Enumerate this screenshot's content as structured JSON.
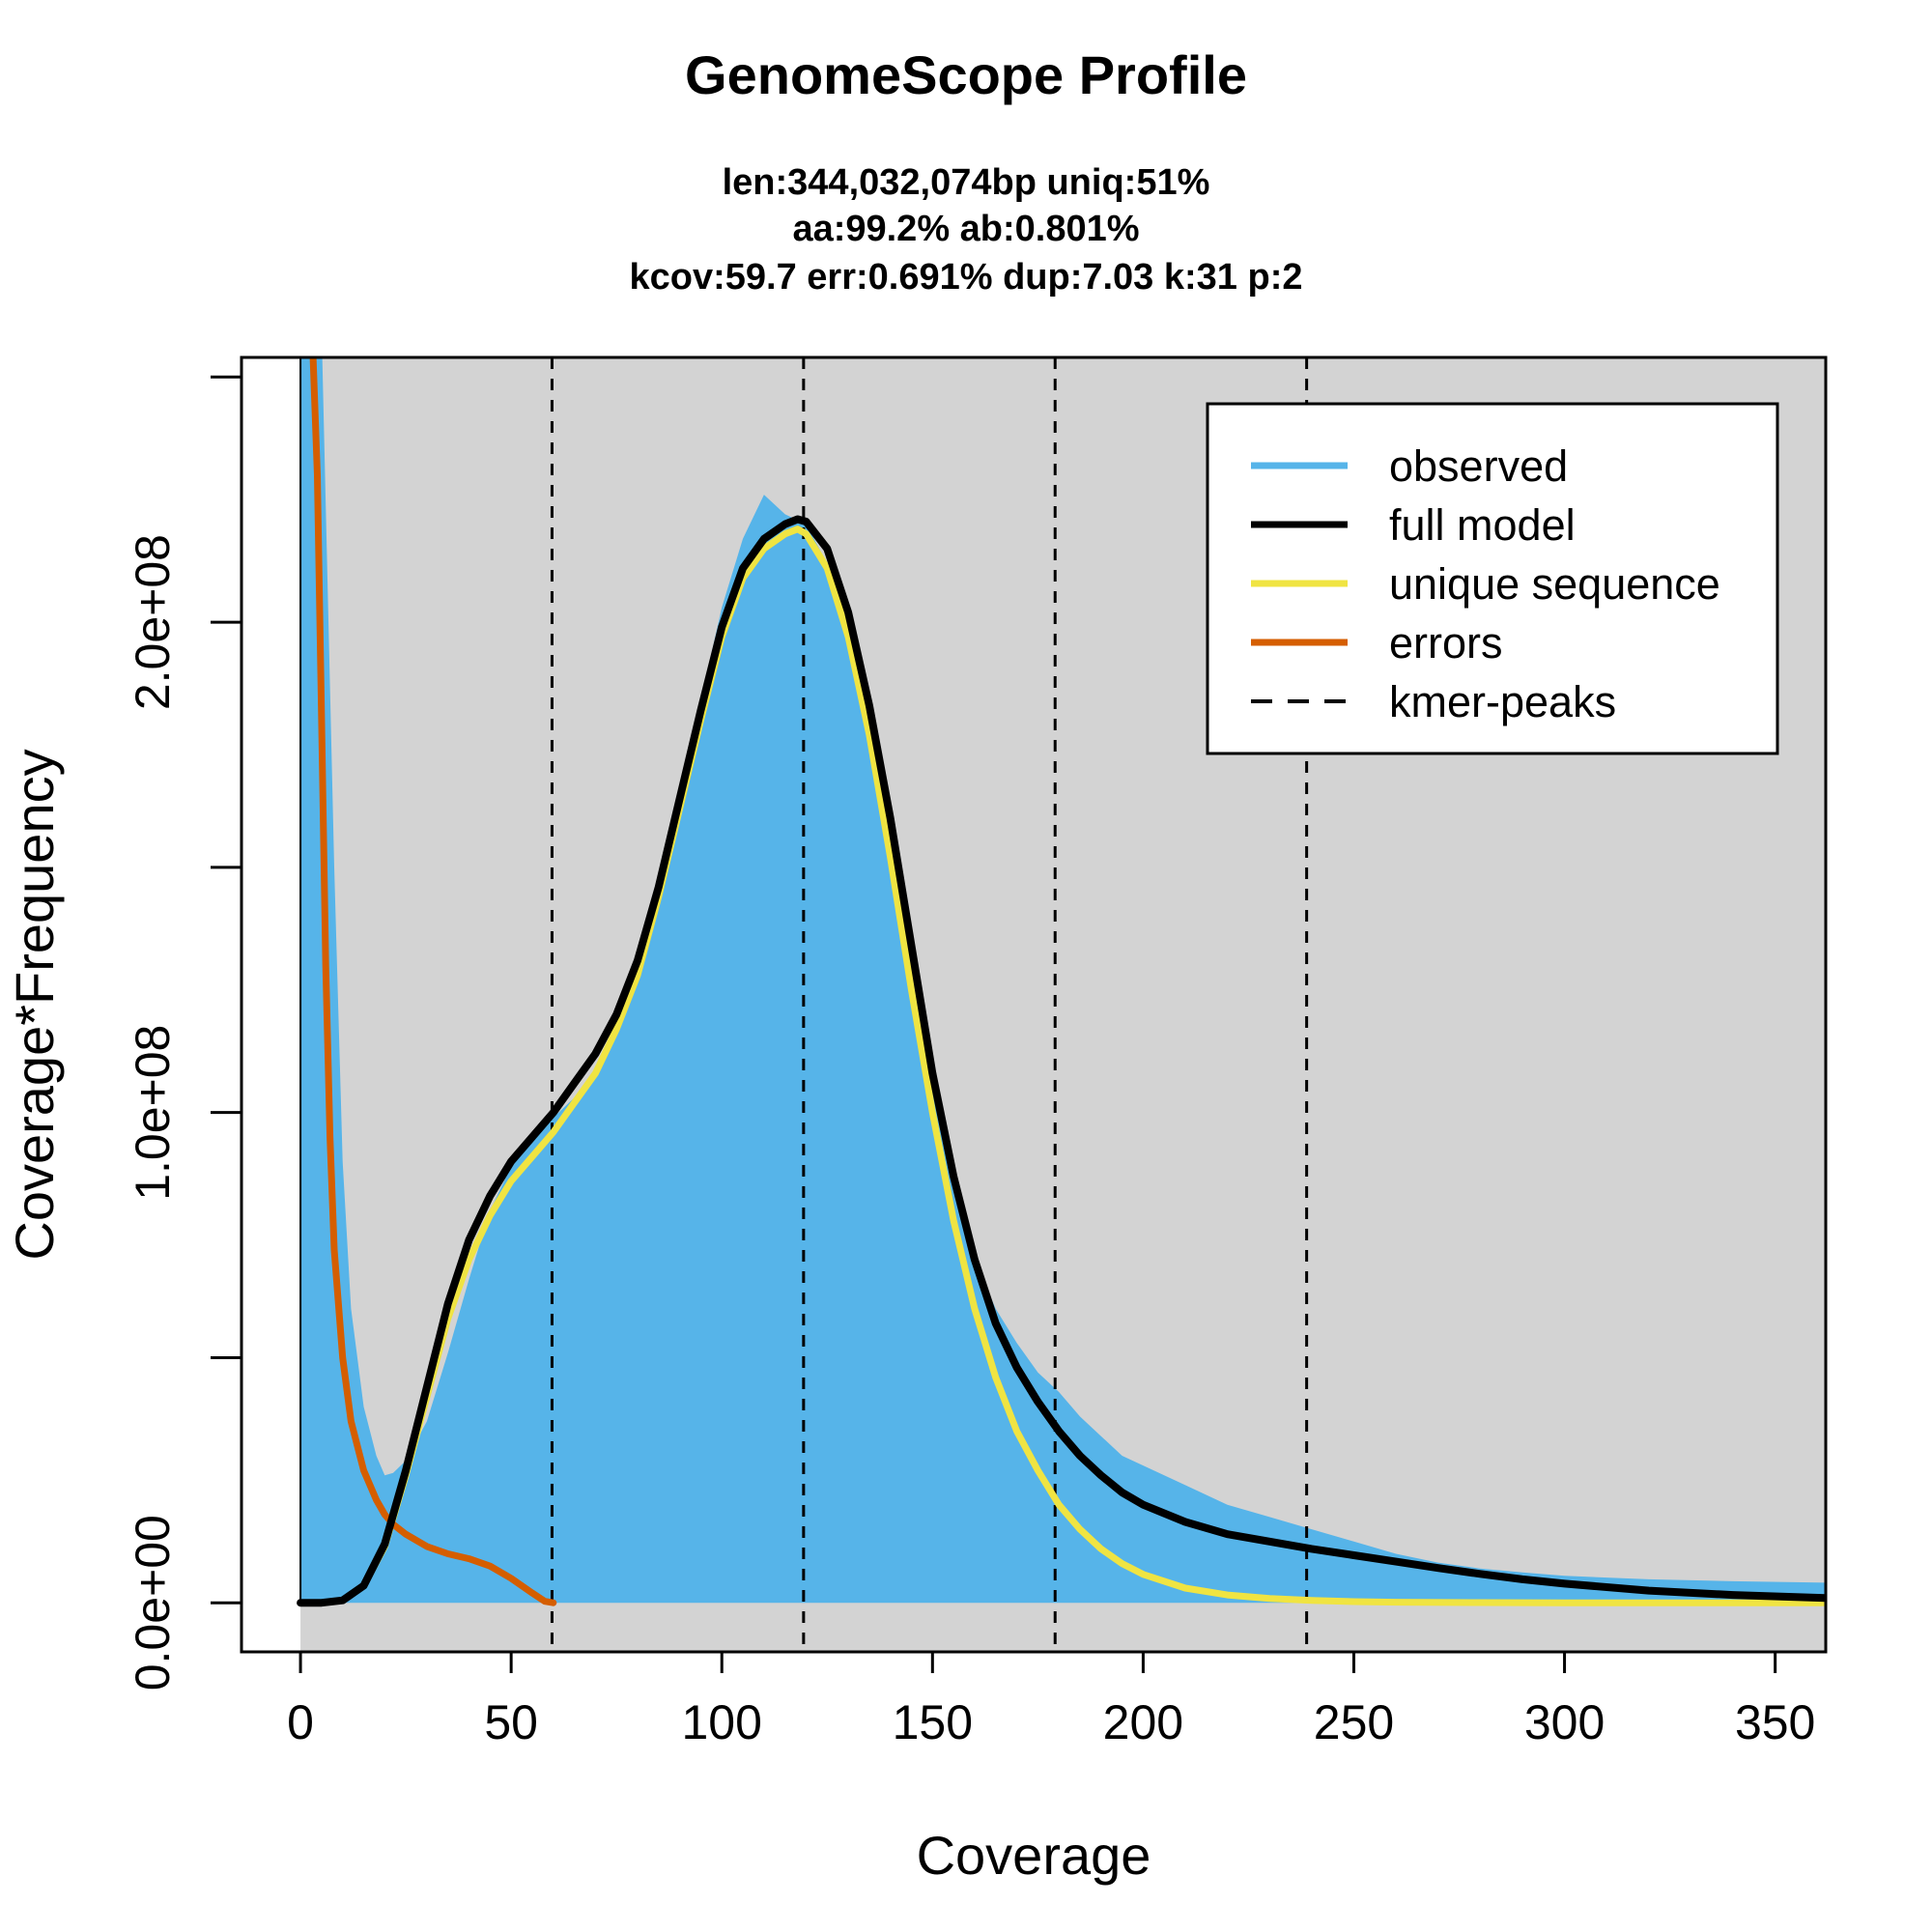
{
  "chart_data": {
    "type": "area",
    "title": "GenomeScope Profile",
    "subtitle_lines": [
      "len:344,032,074bp uniq:51%",
      "aa:99.2% ab:0.801%",
      "kcov:59.7 err:0.691%  dup:7.03  k:31 p:2"
    ],
    "xlabel": "Coverage",
    "ylabel": "Coverage*Frequency",
    "xlim": [
      -14,
      362
    ],
    "ylim": [
      -10000000,
      254000000
    ],
    "x_ticks": [
      0,
      50,
      100,
      150,
      200,
      250,
      300,
      350
    ],
    "x_tick_labels": [
      "0",
      "50",
      "100",
      "150",
      "200",
      "250",
      "300",
      "350"
    ],
    "y_ticks": [
      0,
      50000000,
      100000000,
      150000000,
      200000000,
      250000000
    ],
    "y_tick_labels": [
      "0.0e+00",
      "",
      "1.0e+08",
      "",
      "2.0e+08",
      ""
    ],
    "kmer_peaks": [
      59.7,
      119.4,
      179.1,
      238.8
    ],
    "legend_position": "top-right",
    "colors": {
      "observed": "#56B4E9",
      "full_model": "#000000",
      "unique_sequence": "#F0E442",
      "errors": "#D55E00",
      "plot_bg": "#D3D3D3"
    },
    "series": [
      {
        "name": "observed",
        "x": [
          0,
          1,
          2,
          3,
          5,
          8,
          10,
          12,
          15,
          18,
          20,
          22,
          25,
          30,
          35,
          40,
          45,
          50,
          55,
          60,
          65,
          70,
          75,
          80,
          85,
          90,
          95,
          100,
          105,
          110,
          115,
          120,
          125,
          130,
          135,
          140,
          145,
          150,
          155,
          160,
          165,
          170,
          175,
          180,
          185,
          190,
          195,
          200,
          210,
          220,
          230,
          240,
          250,
          260,
          270,
          280,
          290,
          300,
          320,
          340,
          362
        ],
        "values": [
          260000000,
          260000000,
          260000000,
          260000000,
          260000000,
          150000000,
          90000000,
          60000000,
          40000000,
          30000000,
          26000000,
          26500000,
          29000000,
          37000000,
          51000000,
          66000000,
          80000000,
          89000000,
          95000000,
          99000000,
          103000000,
          107000000,
          116000000,
          128000000,
          144000000,
          163000000,
          184000000,
          203000000,
          217000000,
          226000000,
          222000000,
          220000000,
          212000000,
          195000000,
          175000000,
          150000000,
          127000000,
          106000000,
          86000000,
          70000000,
          60000000,
          53000000,
          47000000,
          43000000,
          38000000,
          34000000,
          30000000,
          28000000,
          24000000,
          20000000,
          17500000,
          15000000,
          12500000,
          10000000,
          8200000,
          7000000,
          6200000,
          5500000,
          4800000,
          4400000,
          4100000
        ]
      },
      {
        "name": "full model",
        "x": [
          0,
          5,
          10,
          15,
          20,
          25,
          30,
          35,
          40,
          45,
          50,
          55,
          60,
          65,
          70,
          75,
          80,
          85,
          90,
          95,
          100,
          105,
          110,
          115,
          118,
          120,
          125,
          130,
          135,
          140,
          145,
          150,
          155,
          160,
          165,
          170,
          175,
          180,
          185,
          190,
          195,
          200,
          210,
          220,
          230,
          240,
          250,
          260,
          270,
          280,
          290,
          300,
          320,
          340,
          362
        ],
        "values": [
          0,
          0,
          500000,
          3500000,
          12000000,
          27000000,
          44000000,
          61000000,
          74000000,
          83000000,
          90000000,
          95000000,
          100000000,
          106000000,
          112000000,
          120000000,
          131000000,
          146000000,
          164000000,
          182000000,
          199000000,
          211000000,
          217000000,
          220000000,
          221000000,
          220500000,
          215000000,
          202000000,
          183000000,
          160000000,
          134000000,
          108000000,
          87000000,
          70000000,
          57000000,
          48000000,
          41000000,
          35000000,
          30000000,
          26000000,
          22500000,
          20000000,
          16500000,
          14000000,
          12500000,
          11000000,
          9700000,
          8400000,
          7100000,
          5900000,
          4800000,
          3900000,
          2500000,
          1600000,
          1000000
        ]
      },
      {
        "name": "unique sequence",
        "x": [
          0,
          5,
          10,
          15,
          20,
          25,
          30,
          35,
          40,
          45,
          50,
          55,
          60,
          65,
          70,
          75,
          80,
          85,
          90,
          95,
          100,
          105,
          110,
          115,
          118,
          120,
          125,
          130,
          135,
          140,
          145,
          150,
          155,
          160,
          165,
          170,
          175,
          180,
          185,
          190,
          195,
          200,
          210,
          220,
          230,
          240,
          250,
          260,
          280,
          300,
          330,
          362
        ],
        "values": [
          0,
          0,
          500000,
          3500000,
          11500000,
          26000000,
          42000000,
          58000000,
          70000000,
          79000000,
          86000000,
          91000000,
          96000000,
          102000000,
          108000000,
          117000000,
          128000000,
          144000000,
          162000000,
          180000000,
          197000000,
          209000000,
          215000000,
          218000000,
          219000000,
          218000000,
          211000000,
          197000000,
          177000000,
          152000000,
          125000000,
          100000000,
          78000000,
          60000000,
          46000000,
          35000000,
          27000000,
          20000000,
          15000000,
          11000000,
          8000000,
          5800000,
          3000000,
          1600000,
          900000,
          500000,
          250000,
          120000,
          40000,
          15000,
          5000,
          0
        ]
      },
      {
        "name": "errors",
        "x": [
          3,
          4,
          5,
          6,
          7,
          8,
          10,
          12,
          15,
          18,
          20,
          22,
          25,
          30,
          35,
          40,
          45,
          50,
          55,
          58,
          60
        ],
        "values": [
          254000000,
          230000000,
          180000000,
          130000000,
          95000000,
          72000000,
          50000000,
          37000000,
          27000000,
          21000000,
          18000000,
          16000000,
          14000000,
          11500000,
          10000000,
          9000000,
          7500000,
          5000000,
          2000000,
          300000,
          0
        ]
      }
    ]
  }
}
